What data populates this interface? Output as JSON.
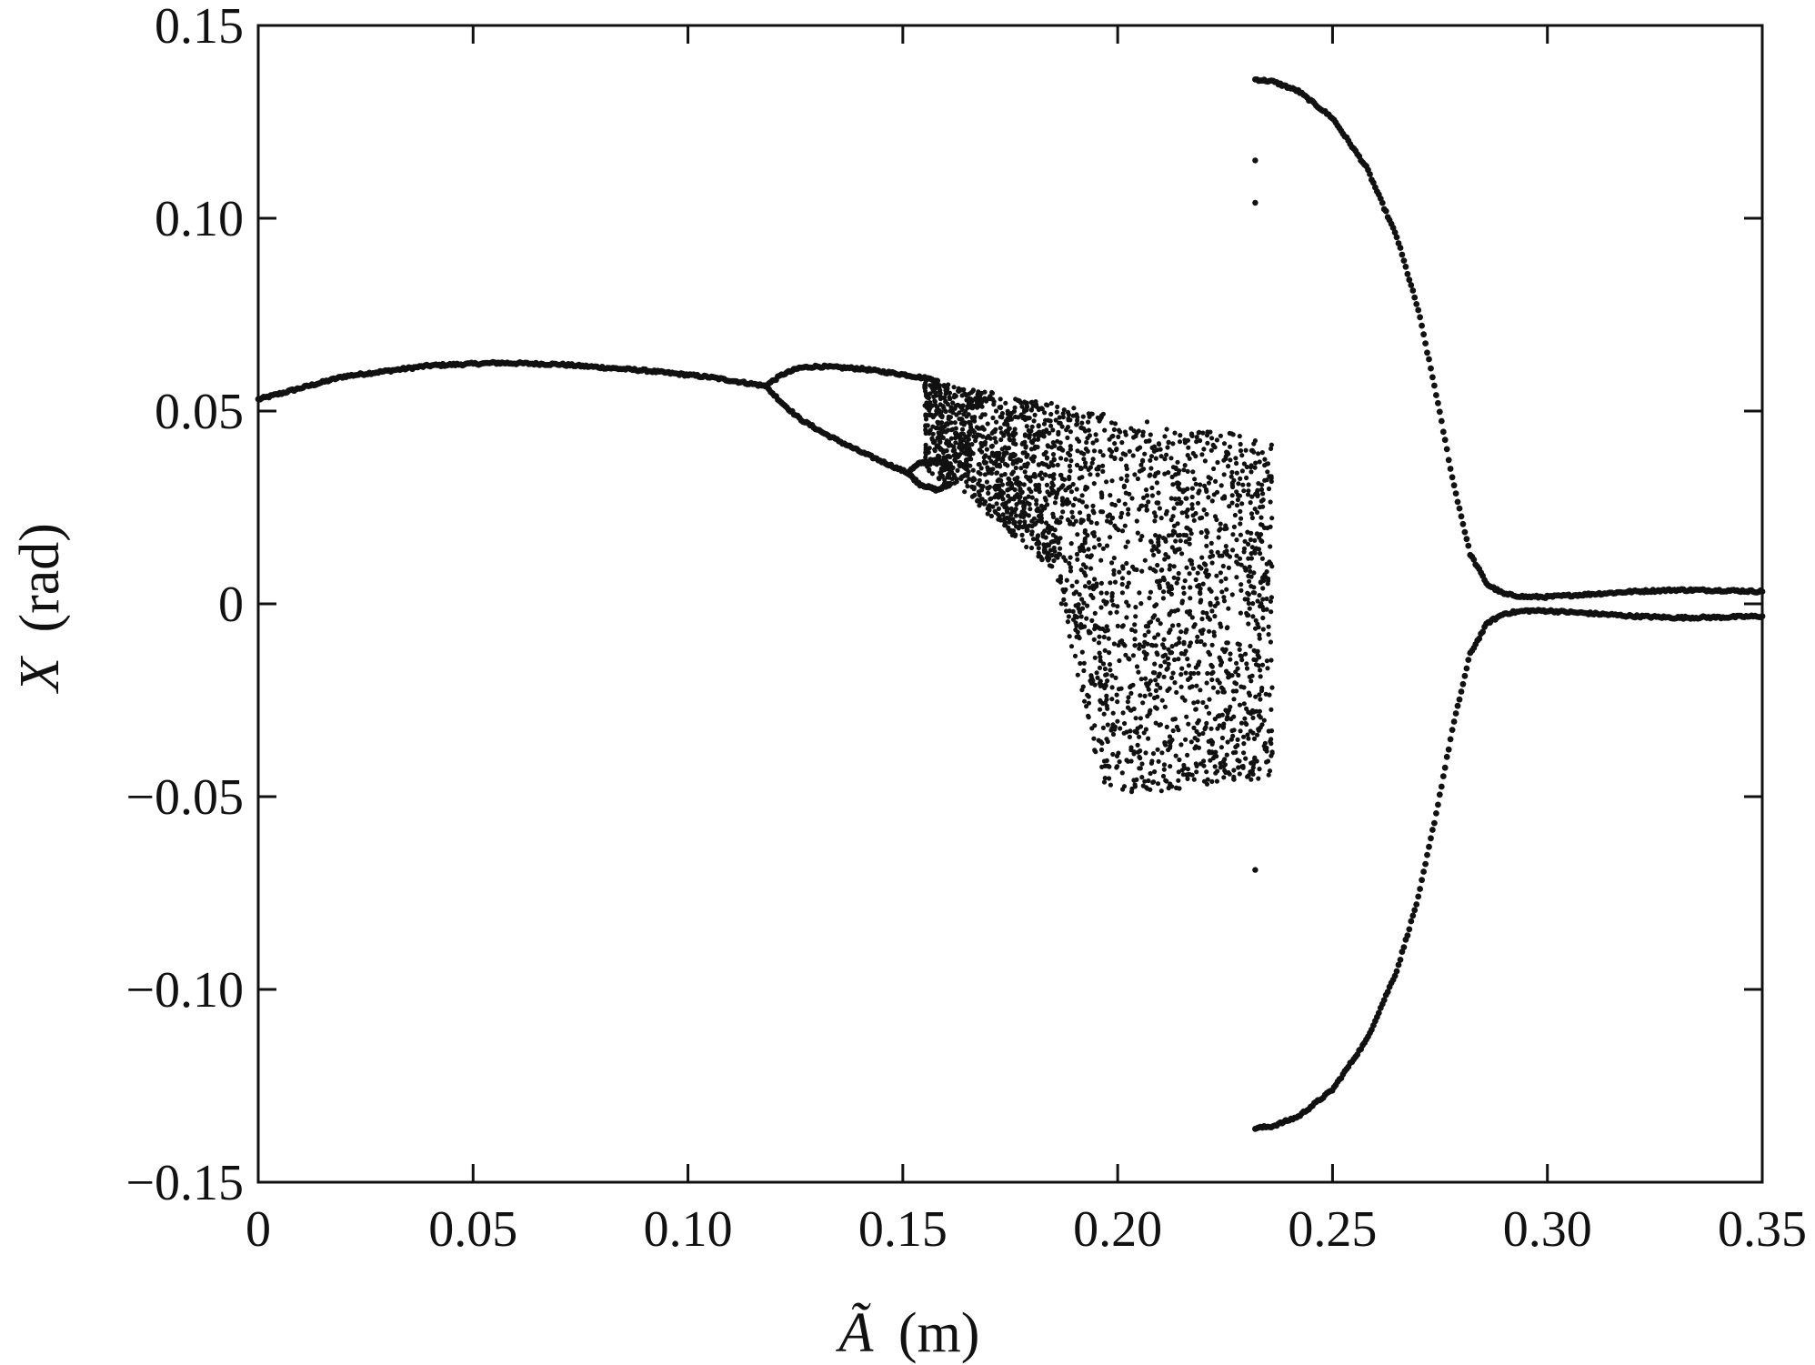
{
  "chart_data": {
    "type": "scatter",
    "title": "",
    "xlabel": {
      "symbol": "Ã",
      "unit": "(m)"
    },
    "ylabel": {
      "symbol": "X",
      "unit": "(rad)"
    },
    "xlim": [
      0,
      0.35
    ],
    "ylim": [
      -0.15,
      0.15
    ],
    "grid": false,
    "legend": "none",
    "x_ticks": [
      {
        "value": 0,
        "label": "0"
      },
      {
        "value": 0.05,
        "label": "0.05"
      },
      {
        "value": 0.1,
        "label": "0.10"
      },
      {
        "value": 0.15,
        "label": "0.15"
      },
      {
        "value": 0.2,
        "label": "0.20"
      },
      {
        "value": 0.25,
        "label": "0.25"
      },
      {
        "value": 0.3,
        "label": "0.30"
      },
      {
        "value": 0.35,
        "label": "0.35"
      }
    ],
    "y_ticks": [
      {
        "value": -0.15,
        "label": "−0.15"
      },
      {
        "value": -0.1,
        "label": "−0.10"
      },
      {
        "value": -0.05,
        "label": "−0.05"
      },
      {
        "value": 0,
        "label": "0"
      },
      {
        "value": 0.05,
        "label": "0.05"
      },
      {
        "value": 0.1,
        "label": "0.10"
      },
      {
        "value": 0.15,
        "label": "0.15"
      }
    ],
    "marker_color": "#111111",
    "series": [
      {
        "kind": "branch",
        "x": [
          0,
          0.02,
          0.04,
          0.056,
          0.07,
          0.09,
          0.105,
          0.118
        ],
        "y": [
          0.053,
          0.059,
          0.0618,
          0.0625,
          0.0621,
          0.0605,
          0.0588,
          0.0565
        ]
      },
      {
        "kind": "branch",
        "x": [
          0.118,
          0.122,
          0.126,
          0.13,
          0.14,
          0.15,
          0.158
        ],
        "y": [
          0.0565,
          0.0595,
          0.0612,
          0.0616,
          0.061,
          0.0595,
          0.058
        ]
      },
      {
        "kind": "branch",
        "x": [
          0.118,
          0.122,
          0.126,
          0.132,
          0.14,
          0.146,
          0.151
        ],
        "y": [
          0.0565,
          0.052,
          0.048,
          0.044,
          0.0395,
          0.0365,
          0.034
        ]
      },
      {
        "kind": "branch",
        "x": [
          0.151,
          0.154,
          0.158,
          0.161
        ],
        "y": [
          0.034,
          0.0365,
          0.0372,
          0.036
        ]
      },
      {
        "kind": "branch",
        "x": [
          0.151,
          0.154,
          0.158,
          0.161
        ],
        "y": [
          0.034,
          0.031,
          0.0295,
          0.031
        ]
      },
      {
        "kind": "branch",
        "x": [
          0.232,
          0.236,
          0.242,
          0.25,
          0.258,
          0.265,
          0.27,
          0.274,
          0.278,
          0.282,
          0.286,
          0.29,
          0.295,
          0.3,
          0.31,
          0.32,
          0.33,
          0.34,
          0.35
        ],
        "y": [
          0.136,
          0.1355,
          0.133,
          0.126,
          0.113,
          0.095,
          0.076,
          0.055,
          0.032,
          0.013,
          0.005,
          0.0025,
          0.0018,
          0.0018,
          0.0025,
          0.0032,
          0.0036,
          0.0035,
          0.0032
        ]
      },
      {
        "kind": "branch",
        "x": [
          0.232,
          0.236,
          0.242,
          0.25,
          0.258,
          0.265,
          0.27,
          0.274,
          0.278,
          0.282,
          0.286,
          0.29,
          0.295,
          0.3,
          0.31,
          0.32,
          0.33,
          0.34,
          0.35
        ],
        "y": [
          -0.136,
          -0.1355,
          -0.133,
          -0.126,
          -0.113,
          -0.095,
          -0.076,
          -0.055,
          -0.032,
          -0.013,
          -0.005,
          -0.0025,
          -0.0018,
          -0.0018,
          -0.0025,
          -0.0032,
          -0.0036,
          -0.0035,
          -0.0032
        ]
      },
      {
        "kind": "points",
        "x": [
          0.232,
          0.232,
          0.232
        ],
        "y": [
          0.115,
          0.104,
          -0.069
        ]
      },
      {
        "kind": "chaotic-band",
        "x_start": 0.155,
        "x_end": 0.236,
        "upper": {
          "x": [
            0.155,
            0.165,
            0.18,
            0.2,
            0.22,
            0.236
          ],
          "y": [
            0.058,
            0.056,
            0.053,
            0.049,
            0.045,
            0.043
          ]
        },
        "lower": {
          "x": [
            0.155,
            0.165,
            0.175,
            0.185,
            0.197,
            0.215,
            0.236
          ],
          "y": [
            0.034,
            0.028,
            0.018,
            0.009,
            -0.05,
            -0.048,
            -0.045
          ]
        }
      }
    ]
  }
}
